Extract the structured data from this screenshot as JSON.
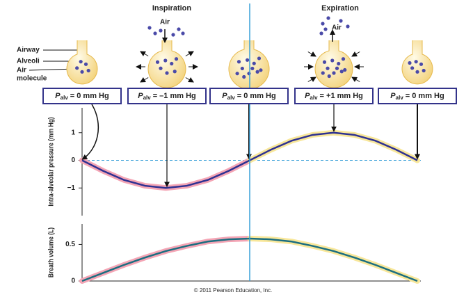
{
  "phases": [
    "Inspiration",
    "Expiration"
  ],
  "labels": {
    "airway": "Airway",
    "alveoli": "Alveoli",
    "air_molecule": [
      "Air",
      "molecule"
    ],
    "air": [
      "Air",
      "Air"
    ]
  },
  "pressure_boxes": [
    {
      "symbol": "P",
      "subscript": "alv",
      "text": "= 0 mm Hg"
    },
    {
      "symbol": "P",
      "subscript": "alv",
      "text": "= –1 mm Hg"
    },
    {
      "symbol": "P",
      "subscript": "alv",
      "text": "= 0 mm Hg"
    },
    {
      "symbol": "P",
      "subscript": "alv",
      "text": "= +1 mm Hg"
    },
    {
      "symbol": "P",
      "subscript": "alv",
      "text": "= 0 mm Hg"
    }
  ],
  "credit": "© 2011 Pearson Education, Inc.",
  "chart_data": [
    {
      "type": "line",
      "ylabel": "Intra-alveolar pressure (mm Hg)",
      "x": [
        0,
        0.25,
        0.5,
        0.75,
        1,
        1.25,
        1.5,
        1.75,
        2,
        2.25,
        2.5,
        2.75,
        3,
        3.25,
        3.5,
        3.75,
        4
      ],
      "xlim": [
        0,
        4
      ],
      "ylim": [
        -2,
        1.9
      ],
      "yticks": [
        {
          "value": -1,
          "label": "−1"
        },
        0,
        1
      ],
      "series": [
        {
          "color": "#2e3192",
          "values": [
            0,
            -0.38,
            -0.71,
            -0.92,
            -1,
            -0.92,
            -0.71,
            -0.38,
            0,
            0.38,
            0.71,
            0.92,
            1,
            0.92,
            0.71,
            0.38,
            0
          ]
        }
      ]
    },
    {
      "type": "line",
      "ylabel": "Breath volume (L)",
      "x": [
        0,
        0.25,
        0.5,
        0.75,
        1,
        1.25,
        1.5,
        1.75,
        2,
        2.25,
        2.5,
        2.75,
        3,
        3.25,
        3.5,
        3.75,
        4
      ],
      "xlim": [
        0,
        4
      ],
      "ylim": [
        0,
        0.78
      ],
      "yticks": [
        0,
        0.5
      ],
      "series": [
        {
          "color": "#1b6e80",
          "values": [
            0,
            0.11,
            0.22,
            0.32,
            0.41,
            0.48,
            0.54,
            0.57,
            0.58,
            0.57,
            0.54,
            0.48,
            0.41,
            0.32,
            0.22,
            0.11,
            0
          ]
        }
      ]
    }
  ]
}
